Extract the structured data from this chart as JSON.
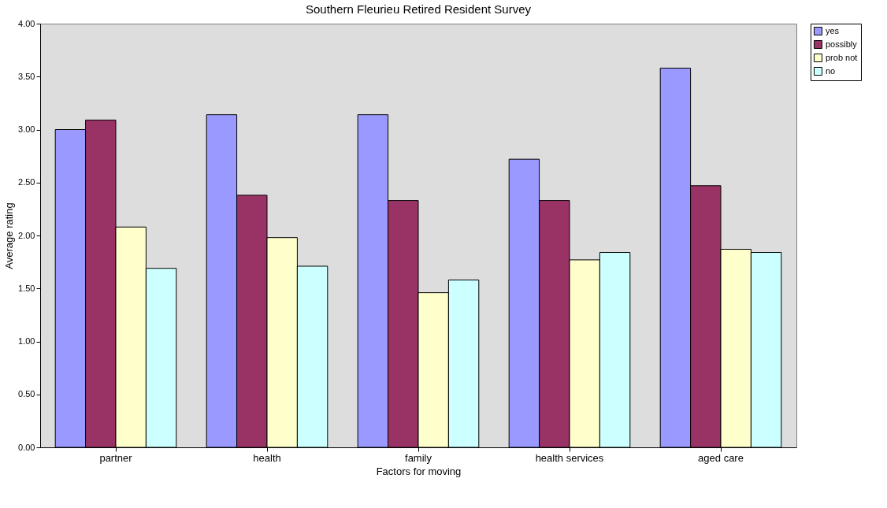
{
  "chart_data": {
    "type": "bar",
    "title": "Southern Fleurieu Retired Resident Survey",
    "xlabel": "Factors for moving",
    "ylabel": "Average rating",
    "categories": [
      "partner",
      "health",
      "family",
      "health services",
      "aged care"
    ],
    "series": [
      {
        "name": "yes",
        "color": "#9999ff",
        "values": [
          3.0,
          3.14,
          3.14,
          2.72,
          3.58
        ]
      },
      {
        "name": "possibly",
        "color": "#993366",
        "values": [
          3.09,
          2.38,
          2.33,
          2.33,
          2.47
        ]
      },
      {
        "name": "prob not",
        "color": "#ffffcc",
        "values": [
          2.08,
          1.98,
          1.46,
          1.77,
          1.87
        ]
      },
      {
        "name": "no",
        "color": "#ccffff",
        "values": [
          1.69,
          1.71,
          1.58,
          1.84,
          1.84
        ]
      }
    ],
    "ylim": [
      0,
      4
    ],
    "yticks": [
      {
        "value": 0,
        "label": "0.00"
      },
      {
        "value": 0.5,
        "label": "0.50"
      },
      {
        "value": 1,
        "label": "1.00"
      },
      {
        "value": 1.5,
        "label": "1.50"
      },
      {
        "value": 2,
        "label": "2.00"
      },
      {
        "value": 2.5,
        "label": "2.50"
      },
      {
        "value": 3,
        "label": "3.00"
      },
      {
        "value": 3.5,
        "label": "3.50"
      },
      {
        "value": 4,
        "label": "4.00"
      }
    ],
    "grid": false,
    "legend": "right"
  }
}
